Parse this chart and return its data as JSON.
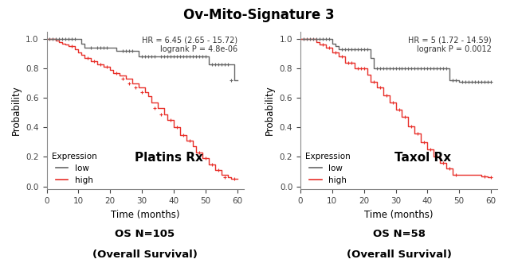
{
  "title": "Ov-Mito-Signature 3",
  "title_fontsize": 12,
  "title_fontweight": "bold",
  "background_color": "#ffffff",
  "panel1": {
    "label": "Platins Rx",
    "xlabel": "Time (months)",
    "ylabel": "Probability",
    "xlim": [
      0,
      62
    ],
    "ylim": [
      -0.02,
      1.05
    ],
    "xticks": [
      0,
      10,
      20,
      30,
      40,
      50,
      60
    ],
    "yticks": [
      0.0,
      0.2,
      0.4,
      0.6,
      0.8,
      1.0
    ],
    "hr_text": "HR = 6.45 (2.65 - 15.72)\nlogrank P = 4.8e-06",
    "subtitle1": "OS N=105",
    "subtitle2": "(Overall Survival)",
    "low_color": "#666666",
    "high_color": "#e8302a",
    "low_x": [
      0,
      11,
      11,
      12,
      12,
      22,
      22,
      29,
      29,
      51,
      51,
      59,
      59,
      60,
      60
    ],
    "low_y": [
      1.0,
      1.0,
      0.97,
      0.97,
      0.94,
      0.94,
      0.92,
      0.92,
      0.88,
      0.88,
      0.83,
      0.83,
      0.72,
      0.72,
      0.72
    ],
    "low_censor_x": [
      1,
      2,
      3,
      4,
      5,
      6,
      7,
      8,
      9,
      14,
      16,
      17,
      18,
      19,
      24,
      25,
      26,
      27,
      30,
      31,
      32,
      33,
      34,
      36,
      37,
      38,
      39,
      40,
      41,
      42,
      43,
      44,
      45,
      46,
      47,
      48,
      49,
      50,
      52,
      53,
      54,
      55,
      56,
      57,
      58
    ],
    "low_censor_y": [
      1.0,
      1.0,
      1.0,
      1.0,
      1.0,
      1.0,
      1.0,
      1.0,
      1.0,
      0.94,
      0.94,
      0.94,
      0.94,
      0.94,
      0.92,
      0.92,
      0.92,
      0.92,
      0.88,
      0.88,
      0.88,
      0.88,
      0.88,
      0.88,
      0.88,
      0.88,
      0.88,
      0.88,
      0.88,
      0.88,
      0.88,
      0.88,
      0.88,
      0.88,
      0.88,
      0.88,
      0.88,
      0.88,
      0.83,
      0.83,
      0.83,
      0.83,
      0.83,
      0.83,
      0.72
    ],
    "high_x": [
      0,
      3,
      3,
      4,
      4,
      5,
      5,
      6,
      6,
      7,
      7,
      9,
      9,
      10,
      10,
      11,
      11,
      12,
      12,
      14,
      14,
      16,
      16,
      18,
      18,
      20,
      20,
      21,
      21,
      23,
      23,
      25,
      25,
      27,
      27,
      29,
      29,
      31,
      31,
      32,
      32,
      33,
      33,
      35,
      35,
      37,
      37,
      38,
      38,
      40,
      40,
      42,
      42,
      44,
      44,
      46,
      46,
      47,
      47,
      49,
      49,
      51,
      51,
      53,
      53,
      55,
      55,
      57,
      57,
      58,
      58,
      60,
      60
    ],
    "high_y": [
      1.0,
      1.0,
      0.99,
      0.99,
      0.98,
      0.98,
      0.97,
      0.97,
      0.96,
      0.96,
      0.95,
      0.95,
      0.93,
      0.93,
      0.91,
      0.91,
      0.89,
      0.89,
      0.87,
      0.87,
      0.85,
      0.85,
      0.83,
      0.83,
      0.81,
      0.81,
      0.79,
      0.79,
      0.77,
      0.77,
      0.75,
      0.75,
      0.73,
      0.73,
      0.7,
      0.7,
      0.67,
      0.67,
      0.64,
      0.64,
      0.61,
      0.61,
      0.57,
      0.57,
      0.53,
      0.53,
      0.49,
      0.49,
      0.45,
      0.45,
      0.4,
      0.4,
      0.35,
      0.35,
      0.31,
      0.31,
      0.27,
      0.27,
      0.23,
      0.23,
      0.19,
      0.19,
      0.15,
      0.15,
      0.11,
      0.11,
      0.08,
      0.08,
      0.06,
      0.06,
      0.05,
      0.05,
      0.05
    ],
    "high_censor_x": [
      8,
      13,
      15,
      17,
      19,
      22,
      24,
      26,
      28,
      30,
      34,
      36,
      39,
      41,
      43,
      45,
      48,
      50,
      52,
      54,
      56,
      59
    ],
    "high_censor_y": [
      0.95,
      0.87,
      0.85,
      0.83,
      0.81,
      0.77,
      0.73,
      0.7,
      0.67,
      0.64,
      0.53,
      0.49,
      0.45,
      0.4,
      0.35,
      0.31,
      0.23,
      0.19,
      0.15,
      0.11,
      0.06,
      0.05
    ]
  },
  "panel2": {
    "label": "Taxol Rx",
    "xlabel": "Time (months)",
    "ylabel": "Probability",
    "xlim": [
      0,
      62
    ],
    "ylim": [
      -0.02,
      1.05
    ],
    "xticks": [
      0,
      10,
      20,
      30,
      40,
      50,
      60
    ],
    "yticks": [
      0.0,
      0.2,
      0.4,
      0.6,
      0.8,
      1.0
    ],
    "hr_text": "HR = 5 (1.72 - 14.59)\nlogrank P = 0.0012",
    "subtitle1": "OS N=58",
    "subtitle2": "(Overall Survival)",
    "low_color": "#666666",
    "high_color": "#e8302a",
    "low_x": [
      0,
      10,
      10,
      11,
      11,
      12,
      12,
      22,
      22,
      23,
      23,
      47,
      47,
      50,
      50,
      60,
      60
    ],
    "low_y": [
      1.0,
      1.0,
      0.97,
      0.97,
      0.95,
      0.95,
      0.93,
      0.93,
      0.87,
      0.87,
      0.8,
      0.8,
      0.72,
      0.72,
      0.71,
      0.71,
      0.71
    ],
    "low_censor_x": [
      1,
      2,
      3,
      4,
      5,
      6,
      7,
      8,
      9,
      13,
      14,
      15,
      16,
      17,
      18,
      19,
      20,
      21,
      24,
      25,
      26,
      27,
      28,
      29,
      30,
      31,
      32,
      33,
      34,
      35,
      36,
      37,
      38,
      39,
      40,
      41,
      42,
      43,
      44,
      45,
      46,
      48,
      49,
      51,
      52,
      53,
      54,
      55,
      56,
      57,
      58,
      59,
      60
    ],
    "low_censor_y": [
      1.0,
      1.0,
      1.0,
      1.0,
      1.0,
      1.0,
      1.0,
      1.0,
      1.0,
      0.93,
      0.93,
      0.93,
      0.93,
      0.93,
      0.93,
      0.93,
      0.93,
      0.93,
      0.8,
      0.8,
      0.8,
      0.8,
      0.8,
      0.8,
      0.8,
      0.8,
      0.8,
      0.8,
      0.8,
      0.8,
      0.8,
      0.8,
      0.8,
      0.8,
      0.8,
      0.8,
      0.8,
      0.8,
      0.8,
      0.8,
      0.8,
      0.72,
      0.72,
      0.71,
      0.71,
      0.71,
      0.71,
      0.71,
      0.71,
      0.71,
      0.71,
      0.71,
      0.71
    ],
    "high_x": [
      0,
      5,
      5,
      6,
      6,
      8,
      8,
      10,
      10,
      12,
      12,
      14,
      14,
      17,
      17,
      21,
      21,
      22,
      22,
      24,
      24,
      26,
      26,
      28,
      28,
      30,
      30,
      32,
      32,
      34,
      34,
      36,
      36,
      38,
      38,
      40,
      40,
      42,
      42,
      44,
      44,
      46,
      46,
      48,
      48,
      57,
      57,
      59,
      59,
      60,
      60
    ],
    "high_y": [
      1.0,
      1.0,
      0.98,
      0.98,
      0.96,
      0.96,
      0.94,
      0.94,
      0.91,
      0.91,
      0.88,
      0.88,
      0.84,
      0.84,
      0.8,
      0.8,
      0.76,
      0.76,
      0.71,
      0.71,
      0.67,
      0.67,
      0.62,
      0.62,
      0.57,
      0.57,
      0.52,
      0.52,
      0.47,
      0.47,
      0.41,
      0.41,
      0.36,
      0.36,
      0.3,
      0.3,
      0.25,
      0.25,
      0.2,
      0.2,
      0.16,
      0.16,
      0.12,
      0.12,
      0.08,
      0.08,
      0.07,
      0.07,
      0.06,
      0.06,
      0.06
    ],
    "high_censor_x": [
      7,
      9,
      11,
      13,
      15,
      16,
      18,
      19,
      20,
      23,
      25,
      27,
      29,
      31,
      33,
      35,
      37,
      39,
      41,
      43,
      45,
      47,
      49,
      58,
      60
    ],
    "high_censor_y": [
      0.96,
      0.94,
      0.91,
      0.88,
      0.84,
      0.84,
      0.8,
      0.8,
      0.8,
      0.71,
      0.67,
      0.62,
      0.57,
      0.52,
      0.47,
      0.41,
      0.36,
      0.3,
      0.25,
      0.2,
      0.16,
      0.12,
      0.08,
      0.07,
      0.06
    ]
  }
}
